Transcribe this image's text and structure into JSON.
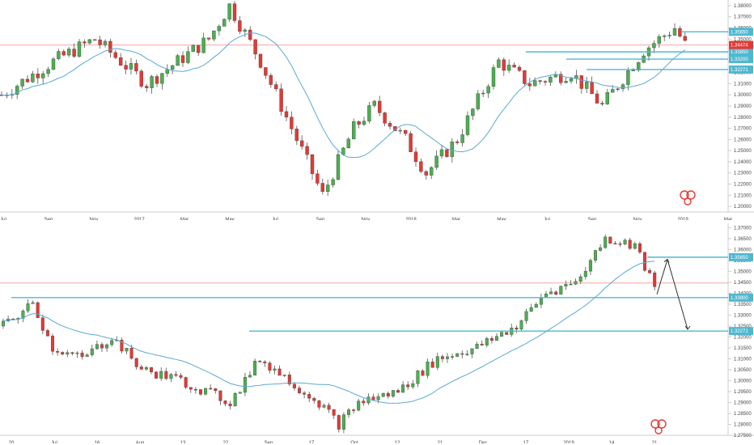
{
  "colors": {
    "up": "#4caf50",
    "down": "#e53935",
    "level": "#4fb8d0",
    "ma": "#5aa9d6",
    "current": "#f4a5a5",
    "grid": "#eeeeee",
    "axis": "#cccccc",
    "watermark": "#e53935"
  },
  "chart_data": [
    {
      "type": "candlestick",
      "timeframe": "weekly",
      "ylim": [
        1.195,
        1.385
      ],
      "y_ticks": [
        "1.38000",
        "1.37000",
        "1.36000",
        "1.35000",
        "1.34000",
        "1.33000",
        "1.32000",
        "1.31000",
        "1.30000",
        "1.29000",
        "1.28000",
        "1.27000",
        "1.26000",
        "1.25000",
        "1.24000",
        "1.23000",
        "1.22000",
        "1.21000",
        "1.20000"
      ],
      "x_labels": [
        "Jul",
        "Sep",
        "Nov",
        "2017",
        "Mar",
        "May",
        "Jul",
        "Sep",
        "Nov",
        "2018",
        "Mar",
        "May",
        "Jul",
        "Sep",
        "Nov",
        "2019",
        "Mar"
      ],
      "levels": [
        {
          "value": 1.3565,
          "label": "1.35650"
        },
        {
          "value": 1.3385,
          "label": "1.33850"
        },
        {
          "value": 1.332,
          "label": "1.33200"
        },
        {
          "value": 1.3227,
          "label": "1.32271"
        }
      ],
      "current_price": {
        "value": 1.3447,
        "label": "1.34474"
      },
      "moving_average": "blue line"
    },
    {
      "type": "candlestick",
      "timeframe": "daily",
      "ylim": [
        1.275,
        1.372
      ],
      "y_ticks": [
        "1.37000",
        "1.36500",
        "1.36000",
        "1.35500",
        "1.35000",
        "1.34500",
        "1.34000",
        "1.33500",
        "1.33000",
        "1.32500",
        "1.32000",
        "1.31500",
        "1.31000",
        "1.30500",
        "1.30000",
        "1.29500",
        "1.29000",
        "1.28500",
        "1.28000",
        "1.27500"
      ],
      "x_labels": [
        "20",
        "Jul",
        "16",
        "Aug",
        "13",
        "22",
        "Sep",
        "17",
        "Oct",
        "12",
        "21",
        "Dec",
        "17",
        "2019",
        "14",
        "21"
      ],
      "levels": [
        {
          "value": 1.3565,
          "label": "1.35650"
        },
        {
          "value": 1.338,
          "label": "1.33800"
        },
        {
          "value": 1.3227,
          "label": "1.32271"
        }
      ],
      "current_price": {
        "value": 1.3447
      },
      "projection": "arrows: up toward 1.3565 then down toward 1.3227",
      "moving_average": "blue line"
    }
  ]
}
